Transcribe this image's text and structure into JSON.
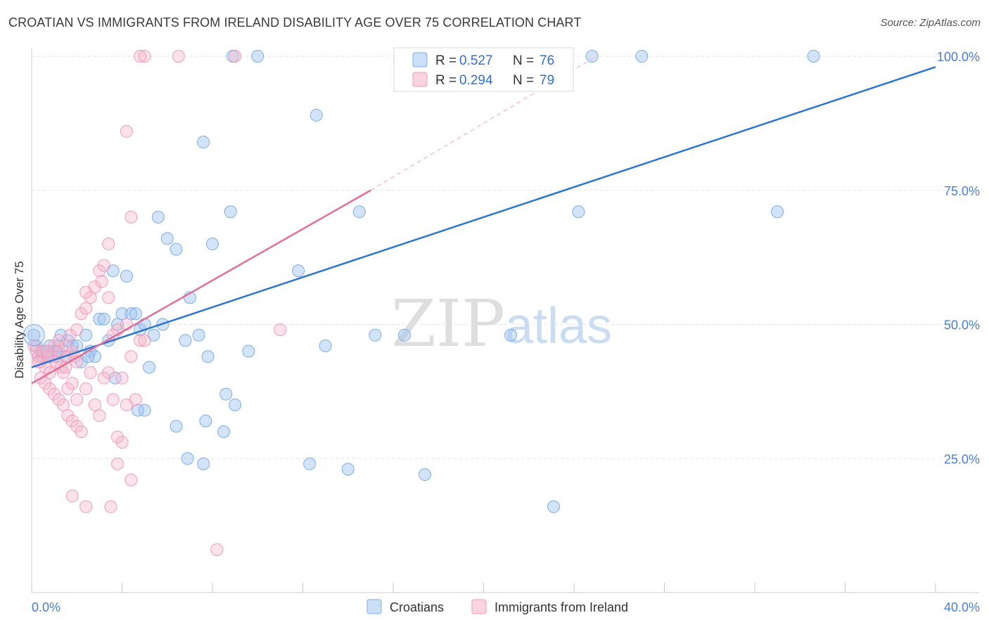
{
  "title": "CROATIAN VS IMMIGRANTS FROM IRELAND DISABILITY AGE OVER 75 CORRELATION CHART",
  "source": "Source: ZipAtlas.com",
  "watermark": {
    "zip": "ZIP",
    "atlas": "atlas"
  },
  "colors": {
    "blue": "#7aaee8",
    "blue_fill": "rgba(160,196,240,0.45)",
    "blue_line": "#2d74d0",
    "pink": "#f29ab8",
    "pink_fill": "rgba(246,182,204,0.40)",
    "pink_line": "#e0709a",
    "grid": "#e3e3e3",
    "tick_text": "#4a7fd0"
  },
  "legend": {
    "rows": [
      {
        "r_label": "R =",
        "r_value": "0.527",
        "n_label": "N =",
        "n_value": "76"
      },
      {
        "r_label": "R =",
        "r_value": "0.294",
        "n_label": "N =",
        "n_value": "79"
      }
    ]
  },
  "bottom_legend": [
    "Croatians",
    "Immigrants from Ireland"
  ],
  "chart_data": {
    "type": "scatter",
    "title": "CROATIAN VS IMMIGRANTS FROM IRELAND DISABILITY AGE OVER 75 CORRELATION CHART",
    "xlabel": "",
    "ylabel": "Disability Age Over 75",
    "xlim": [
      0,
      40
    ],
    "ylim": [
      0,
      103
    ],
    "x_tick_labels": [
      "0.0%",
      "40.0%"
    ],
    "y_ticks": [
      25,
      50,
      75,
      100
    ],
    "y_tick_labels": [
      "25.0%",
      "50.0%",
      "75.0%",
      "100.0%"
    ],
    "grid": true,
    "legend_position": "top-center",
    "series": [
      {
        "name": "Croatians",
        "R": 0.527,
        "N": 76,
        "trend": {
          "x": [
            0,
            40
          ],
          "y": [
            42,
            98
          ]
        },
        "points": [
          [
            0.1,
            48
          ],
          [
            0.2,
            46
          ],
          [
            0.3,
            44
          ],
          [
            0.4,
            45
          ],
          [
            0.5,
            44
          ],
          [
            0.6,
            45
          ],
          [
            0.7,
            44
          ],
          [
            0.8,
            46
          ],
          [
            0.9,
            45
          ],
          [
            1.0,
            44
          ],
          [
            1.1,
            45
          ],
          [
            1.2,
            46
          ],
          [
            1.3,
            48
          ],
          [
            1.5,
            44
          ],
          [
            1.8,
            46
          ],
          [
            2.0,
            46
          ],
          [
            2.2,
            43
          ],
          [
            2.4,
            48
          ],
          [
            2.6,
            45
          ],
          [
            2.8,
            44
          ],
          [
            3.0,
            51
          ],
          [
            3.2,
            51
          ],
          [
            3.4,
            47
          ],
          [
            3.6,
            60
          ],
          [
            3.8,
            50
          ],
          [
            4.0,
            52
          ],
          [
            4.2,
            59
          ],
          [
            4.4,
            52
          ],
          [
            4.6,
            52
          ],
          [
            4.8,
            49
          ],
          [
            5.0,
            50
          ],
          [
            5.2,
            42
          ],
          [
            5.4,
            48
          ],
          [
            5.6,
            70
          ],
          [
            5.8,
            50
          ],
          [
            6.0,
            66
          ],
          [
            6.4,
            64
          ],
          [
            6.8,
            47
          ],
          [
            7.0,
            55
          ],
          [
            7.4,
            48
          ],
          [
            7.6,
            84
          ],
          [
            7.8,
            44
          ],
          [
            8.0,
            65
          ],
          [
            8.8,
            71
          ],
          [
            8.6,
            37
          ],
          [
            9.6,
            45
          ],
          [
            10.0,
            100
          ],
          [
            11.8,
            60
          ],
          [
            12.6,
            89
          ],
          [
            13.0,
            46
          ],
          [
            14.5,
            71
          ],
          [
            15.2,
            48
          ],
          [
            16.5,
            48
          ],
          [
            17.4,
            22
          ],
          [
            21.2,
            48
          ],
          [
            23.3,
            96
          ],
          [
            24.2,
            71
          ],
          [
            24.8,
            100
          ],
          [
            27.0,
            100
          ],
          [
            33.0,
            71
          ],
          [
            34.6,
            100
          ],
          [
            8.9,
            100
          ],
          [
            5.0,
            34
          ],
          [
            6.9,
            25
          ],
          [
            7.6,
            24
          ],
          [
            8.5,
            30
          ],
          [
            9.0,
            35
          ],
          [
            4.7,
            34
          ],
          [
            7.7,
            32
          ],
          [
            6.4,
            31
          ],
          [
            12.3,
            24
          ],
          [
            14.0,
            23
          ],
          [
            23.1,
            16
          ],
          [
            1.6,
            47
          ],
          [
            2.5,
            44
          ],
          [
            3.7,
            40
          ]
        ]
      },
      {
        "name": "Immigrants from Ireland",
        "R": 0.294,
        "N": 79,
        "trend": {
          "x": [
            0,
            15
          ],
          "y": [
            39,
            75
          ]
        },
        "trend_ext": {
          "x": [
            15,
            25
          ],
          "y": [
            75,
            100
          ]
        },
        "points": [
          [
            0.1,
            46
          ],
          [
            0.2,
            45
          ],
          [
            0.3,
            44
          ],
          [
            0.4,
            43
          ],
          [
            0.5,
            45
          ],
          [
            0.6,
            42
          ],
          [
            0.7,
            44
          ],
          [
            0.8,
            41
          ],
          [
            0.9,
            44
          ],
          [
            1.0,
            46
          ],
          [
            1.1,
            43
          ],
          [
            1.2,
            45
          ],
          [
            1.3,
            42
          ],
          [
            1.4,
            41
          ],
          [
            1.5,
            46
          ],
          [
            1.6,
            44
          ],
          [
            1.7,
            48
          ],
          [
            1.8,
            45
          ],
          [
            1.9,
            44
          ],
          [
            2.0,
            43
          ],
          [
            0.4,
            40
          ],
          [
            0.6,
            39
          ],
          [
            0.8,
            38
          ],
          [
            1.0,
            37
          ],
          [
            1.2,
            36
          ],
          [
            1.4,
            35
          ],
          [
            1.6,
            33
          ],
          [
            1.8,
            32
          ],
          [
            2.0,
            31
          ],
          [
            2.2,
            30
          ],
          [
            1.6,
            38
          ],
          [
            1.8,
            39
          ],
          [
            2.0,
            36
          ],
          [
            2.2,
            52
          ],
          [
            2.4,
            53
          ],
          [
            2.6,
            55
          ],
          [
            2.8,
            57
          ],
          [
            3.0,
            60
          ],
          [
            3.2,
            61
          ],
          [
            3.4,
            55
          ],
          [
            2.4,
            38
          ],
          [
            2.6,
            41
          ],
          [
            2.8,
            35
          ],
          [
            3.0,
            33
          ],
          [
            3.2,
            40
          ],
          [
            3.4,
            41
          ],
          [
            3.6,
            36
          ],
          [
            3.8,
            29
          ],
          [
            4.0,
            28
          ],
          [
            4.2,
            35
          ],
          [
            3.4,
            65
          ],
          [
            4.4,
            70
          ],
          [
            4.8,
            47
          ],
          [
            5.0,
            47
          ],
          [
            4.4,
            44
          ],
          [
            3.8,
            49
          ],
          [
            3.6,
            48
          ],
          [
            4.2,
            50
          ],
          [
            4.6,
            36
          ],
          [
            3.8,
            24
          ],
          [
            4.0,
            40
          ],
          [
            4.4,
            21
          ],
          [
            2.4,
            16
          ],
          [
            3.5,
            16
          ],
          [
            1.8,
            18
          ],
          [
            8.2,
            8
          ],
          [
            4.2,
            86
          ],
          [
            4.8,
            100
          ],
          [
            5.0,
            100
          ],
          [
            6.5,
            100
          ],
          [
            9.0,
            100
          ],
          [
            11.0,
            49
          ],
          [
            2.4,
            56
          ],
          [
            1.2,
            47
          ],
          [
            0.7,
            45
          ],
          [
            1.5,
            42
          ],
          [
            3.1,
            58
          ],
          [
            2.0,
            49
          ],
          [
            0.3,
            43
          ]
        ]
      }
    ]
  }
}
